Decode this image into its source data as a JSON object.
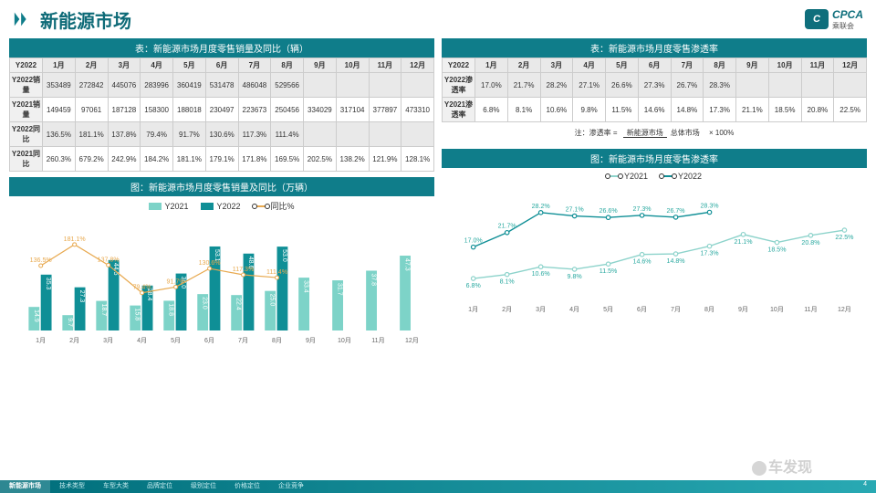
{
  "header": {
    "title": "新能源市场",
    "logo_brand": "CPCA",
    "logo_sub": "乘联会"
  },
  "months": [
    "1月",
    "2月",
    "3月",
    "4月",
    "5月",
    "6月",
    "7月",
    "8月",
    "9月",
    "10月",
    "11月",
    "12月"
  ],
  "left_table": {
    "title": "表：新能源市场月度零售销量及同比（辆）",
    "year_header": "Y2022",
    "rows": {
      "y2022_sales_label": "Y2022销量",
      "y2022_sales": [
        "353489",
        "272842",
        "445076",
        "283996",
        "360419",
        "531478",
        "486048",
        "529566",
        "",
        "",
        "",
        ""
      ],
      "y2021_sales_label": "Y2021销量",
      "y2021_sales": [
        "149459",
        "97061",
        "187128",
        "158300",
        "188018",
        "230497",
        "223673",
        "250456",
        "334029",
        "317104",
        "377897",
        "473310"
      ],
      "y2022_yoy_label": "Y2022同比",
      "y2022_yoy": [
        "136.5%",
        "181.1%",
        "137.8%",
        "79.4%",
        "91.7%",
        "130.6%",
        "117.3%",
        "111.4%",
        "",
        "",
        "",
        ""
      ],
      "y2021_yoy_label": "Y2021同比",
      "y2021_yoy": [
        "260.3%",
        "679.2%",
        "242.9%",
        "184.2%",
        "181.1%",
        "179.1%",
        "171.8%",
        "169.5%",
        "202.5%",
        "138.2%",
        "121.9%",
        "128.1%"
      ]
    }
  },
  "right_table": {
    "title": "表：新能源市场月度零售渗透率",
    "year_header": "Y2022",
    "rows": {
      "y2022_label": "Y2022渗透率",
      "y2022": [
        "17.0%",
        "21.7%",
        "28.2%",
        "27.1%",
        "26.6%",
        "27.3%",
        "26.7%",
        "28.3%",
        "",
        "",
        "",
        ""
      ],
      "y2021_label": "Y2021渗透率",
      "y2021": [
        "6.8%",
        "8.1%",
        "10.6%",
        "9.8%",
        "11.5%",
        "14.6%",
        "14.8%",
        "17.3%",
        "21.1%",
        "18.5%",
        "20.8%",
        "22.5%"
      ]
    },
    "formula_prefix": "注：渗透率 =",
    "formula_num": "新能源市场",
    "formula_den": "总体市场",
    "formula_suffix": "× 100%"
  },
  "bar_chart": {
    "title": "图：新能源市场月度零售销量及同比（万辆）",
    "legend": {
      "y2021": "Y2021",
      "y2022": "Y2022",
      "yoy": "同比%"
    },
    "colors": {
      "y2021": "#7dd3c8",
      "y2022": "#0f8f96",
      "yoy": "#e8a94f"
    },
    "y2021": [
      14.9,
      9.7,
      18.7,
      15.8,
      18.8,
      23.0,
      22.4,
      25.0,
      33.4,
      31.7,
      37.8,
      47.3
    ],
    "y2022": [
      35.3,
      27.3,
      44.5,
      28.4,
      36.0,
      53.1,
      48.6,
      53.0,
      null,
      null,
      null,
      null
    ],
    "yoy": [
      136.5,
      181.1,
      137.8,
      79.4,
      91.7,
      130.6,
      117.3,
      111.4,
      null,
      null,
      null,
      null
    ],
    "y_max": 60,
    "yoy_max": 200
  },
  "line_chart": {
    "title": "图：新能源市场月度零售渗透率",
    "legend": {
      "y2021": "Y2021",
      "y2022": "Y2022"
    },
    "colors": {
      "y2021": "#8dd3cb",
      "y2022": "#0f8f96"
    },
    "y2021": [
      6.8,
      8.1,
      10.6,
      9.8,
      11.5,
      14.6,
      14.8,
      17.3,
      21.1,
      18.5,
      20.8,
      22.5
    ],
    "y2022": [
      17.0,
      21.7,
      28.2,
      27.1,
      26.6,
      27.3,
      26.7,
      28.3,
      null,
      null,
      null,
      null
    ],
    "y_max": 32
  },
  "footer": {
    "tabs": [
      "新能源市场",
      "技术类型",
      "车型大类",
      "品牌定位",
      "级别定位",
      "价格定位",
      "企业竞争"
    ],
    "page": "4"
  },
  "watermark": "车发现"
}
